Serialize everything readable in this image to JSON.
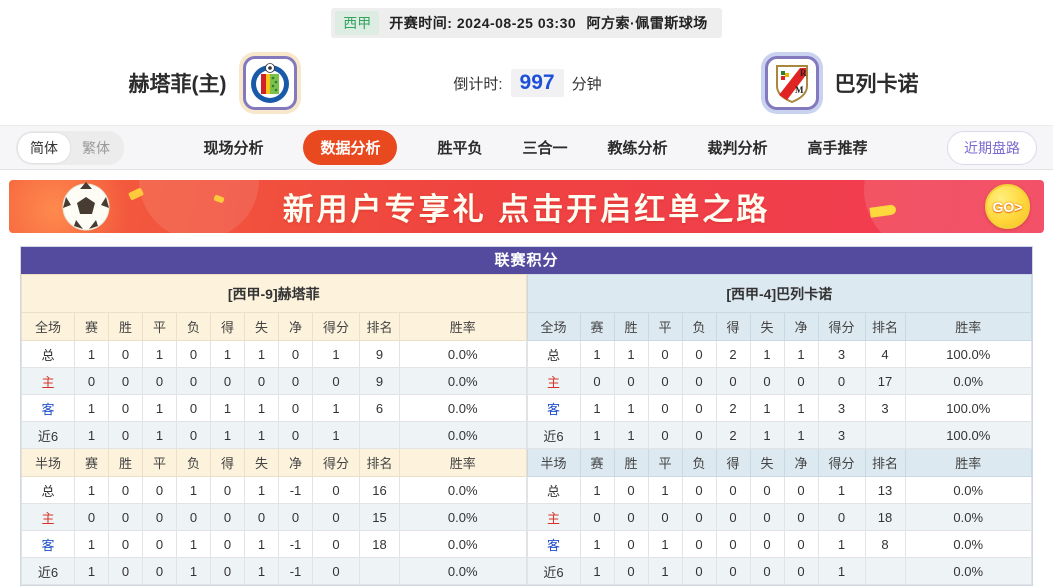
{
  "match": {
    "league": "西甲",
    "kickoff_label": "开赛时间:",
    "kickoff_time": "2024-08-25 03:30",
    "venue": "阿方索·佩雷斯球场",
    "home_name": "赫塔菲(主)",
    "away_name": "巴列卡诺",
    "countdown_label": "倒计时:",
    "countdown_value": "997",
    "countdown_unit": "分钟"
  },
  "nav": {
    "lang": [
      {
        "label": "简体",
        "active": true
      },
      {
        "label": "繁体",
        "active": false
      }
    ],
    "tabs": [
      {
        "label": "现场分析",
        "active": false
      },
      {
        "label": "数据分析",
        "active": true
      },
      {
        "label": "胜平负",
        "active": false
      },
      {
        "label": "三合一",
        "active": false
      },
      {
        "label": "教练分析",
        "active": false
      },
      {
        "label": "裁判分析",
        "active": false
      },
      {
        "label": "高手推荐",
        "active": false
      }
    ],
    "recent_trend_button": "近期盘路"
  },
  "banner": {
    "title": "新用户专享礼  点击开启红单之路",
    "go_label": "GO>"
  },
  "league_table": {
    "title": "联赛积分",
    "columns": [
      "赛",
      "胜",
      "平",
      "负",
      "得",
      "失",
      "净",
      "得分",
      "排名",
      "胜率"
    ],
    "full_section_label": "全场",
    "half_section_label": "半场",
    "teams": [
      {
        "header": "[西甲-9]赫塔菲",
        "theme": "cream",
        "full_rows": [
          {
            "label": "总",
            "type": "total",
            "cells": [
              "1",
              "0",
              "1",
              "0",
              "1",
              "1",
              "0",
              "1",
              "9",
              "0.0%"
            ]
          },
          {
            "label": "主",
            "type": "home",
            "cells": [
              "0",
              "0",
              "0",
              "0",
              "0",
              "0",
              "0",
              "0",
              "9",
              "0.0%"
            ]
          },
          {
            "label": "客",
            "type": "away",
            "cells": [
              "1",
              "0",
              "1",
              "0",
              "1",
              "1",
              "0",
              "1",
              "6",
              "0.0%"
            ]
          },
          {
            "label": "近6",
            "type": "recent",
            "cells": [
              "1",
              "0",
              "1",
              "0",
              "1",
              "1",
              "0",
              "1",
              "",
              "0.0%"
            ]
          }
        ],
        "half_rows": [
          {
            "label": "总",
            "type": "total",
            "cells": [
              "1",
              "0",
              "0",
              "1",
              "0",
              "1",
              "-1",
              "0",
              "16",
              "0.0%"
            ]
          },
          {
            "label": "主",
            "type": "home",
            "cells": [
              "0",
              "0",
              "0",
              "0",
              "0",
              "0",
              "0",
              "0",
              "15",
              "0.0%"
            ]
          },
          {
            "label": "客",
            "type": "away",
            "cells": [
              "1",
              "0",
              "0",
              "1",
              "0",
              "1",
              "-1",
              "0",
              "18",
              "0.0%"
            ]
          },
          {
            "label": "近6",
            "type": "recent",
            "cells": [
              "1",
              "0",
              "0",
              "1",
              "0",
              "1",
              "-1",
              "0",
              "",
              "0.0%"
            ]
          }
        ]
      },
      {
        "header": "[西甲-4]巴列卡诺",
        "theme": "blue",
        "full_rows": [
          {
            "label": "总",
            "type": "total",
            "cells": [
              "1",
              "1",
              "0",
              "0",
              "2",
              "1",
              "1",
              "3",
              "4",
              "100.0%"
            ]
          },
          {
            "label": "主",
            "type": "home",
            "cells": [
              "0",
              "0",
              "0",
              "0",
              "0",
              "0",
              "0",
              "0",
              "17",
              "0.0%"
            ]
          },
          {
            "label": "客",
            "type": "away",
            "cells": [
              "1",
              "1",
              "0",
              "0",
              "2",
              "1",
              "1",
              "3",
              "3",
              "100.0%"
            ]
          },
          {
            "label": "近6",
            "type": "recent",
            "cells": [
              "1",
              "1",
              "0",
              "0",
              "2",
              "1",
              "1",
              "3",
              "",
              "100.0%"
            ]
          }
        ],
        "half_rows": [
          {
            "label": "总",
            "type": "total",
            "cells": [
              "1",
              "0",
              "1",
              "0",
              "0",
              "0",
              "0",
              "1",
              "13",
              "0.0%"
            ]
          },
          {
            "label": "主",
            "type": "home",
            "cells": [
              "0",
              "0",
              "0",
              "0",
              "0",
              "0",
              "0",
              "0",
              "18",
              "0.0%"
            ]
          },
          {
            "label": "客",
            "type": "away",
            "cells": [
              "1",
              "0",
              "1",
              "0",
              "0",
              "0",
              "0",
              "1",
              "8",
              "0.0%"
            ]
          },
          {
            "label": "近6",
            "type": "recent",
            "cells": [
              "1",
              "0",
              "1",
              "0",
              "0",
              "0",
              "0",
              "1",
              "",
              "0.0%"
            ]
          }
        ]
      }
    ]
  },
  "colors": {
    "accent_orange": "#e8491f",
    "table_title_purple": "#544a9e",
    "home_row_red": "#d7342b",
    "away_row_blue": "#2050c8",
    "countdown_blue": "#1d4fd8",
    "league_green": "#36a35f"
  }
}
